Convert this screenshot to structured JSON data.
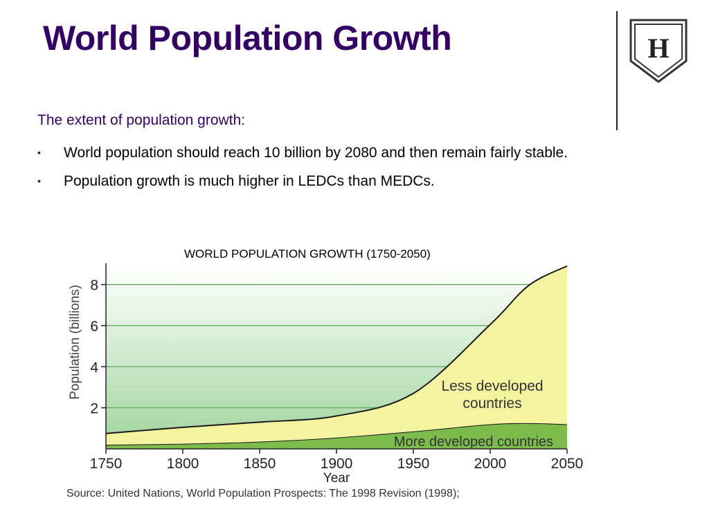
{
  "slide": {
    "title": "World Population Growth",
    "subtitle": "The extent of population growth:",
    "bullets": [
      "World population should reach 10 billion by 2080 and then remain fairly stable.",
      "Population growth is much higher in LEDCs than MEDCs."
    ],
    "logo_letter": "H"
  },
  "chart_data": {
    "type": "area",
    "title": "WORLD POPULATION GROWTH (1750-2050)",
    "xlabel": "Year",
    "ylabel": "Population (billions)",
    "xlim": [
      1750,
      2050
    ],
    "ylim": [
      0,
      8.9
    ],
    "x_ticks": [
      1750,
      1800,
      1850,
      1900,
      1950,
      2000,
      2050
    ],
    "y_ticks": [
      2,
      4,
      6,
      8
    ],
    "grid": true,
    "stacked": true,
    "series": [
      {
        "name": "More developed countries",
        "color": "#7dbb4c",
        "x": [
          1750,
          1800,
          1850,
          1900,
          1950,
          2000,
          2025,
          2050
        ],
        "values": [
          0.2,
          0.25,
          0.35,
          0.55,
          0.85,
          1.2,
          1.25,
          1.2
        ]
      },
      {
        "name": "Less developed countries",
        "color": "#f4f4a0",
        "x": [
          1750,
          1800,
          1850,
          1900,
          1950,
          2000,
          2025,
          2050
        ],
        "values": [
          0.55,
          0.8,
          0.95,
          1.05,
          1.85,
          4.85,
          6.7,
          7.7
        ]
      }
    ],
    "source": "Source: United Nations, World Population Prospects: The 1998 Revision (1998);"
  }
}
